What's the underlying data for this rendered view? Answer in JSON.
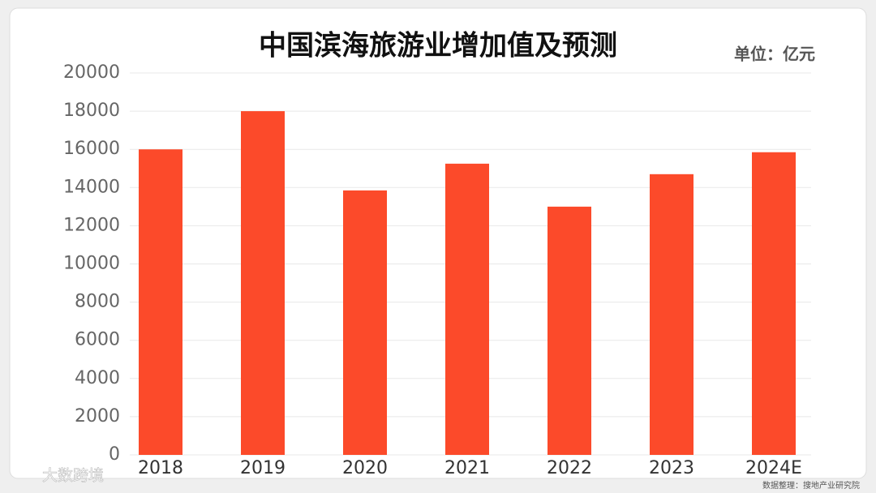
{
  "chart_data": {
    "type": "bar",
    "title": "中国滨海旅游业增加值及预测",
    "unit": "单位：亿元",
    "source": "数据整理：搜地产业研究院",
    "watermark": "大数跨境",
    "categories": [
      "2018",
      "2019",
      "2020",
      "2021",
      "2022",
      "2023",
      "2024E"
    ],
    "values": [
      16000,
      18000,
      13850,
      15250,
      13000,
      14700,
      15850
    ],
    "color": "#fc4a2a",
    "ylim": [
      0,
      20000
    ],
    "yticks": [
      0,
      2000,
      4000,
      6000,
      8000,
      10000,
      12000,
      14000,
      16000,
      18000,
      20000
    ],
    "grid": true
  }
}
